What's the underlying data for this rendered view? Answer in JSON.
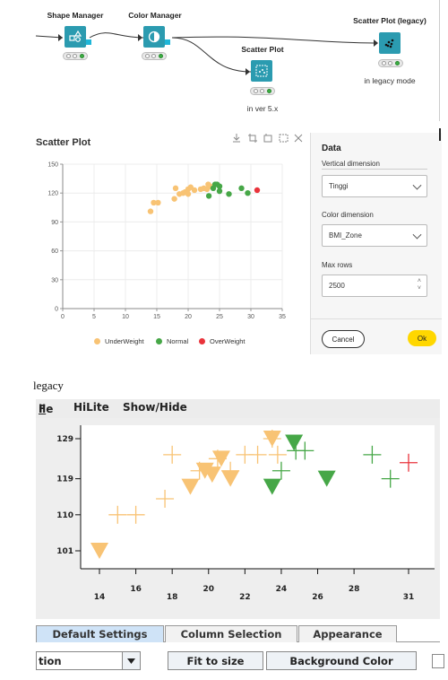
{
  "workflow": {
    "nodes": [
      {
        "label": "Shape Manager"
      },
      {
        "label": "Color Manager"
      },
      {
        "label": "Scatter Plot"
      },
      {
        "label": "Scatter Plot (legacy)"
      }
    ],
    "notes": {
      "new": "in ver 5.x",
      "legacy": "in legacy mode"
    }
  },
  "scatter_view": {
    "title": "Scatter Plot",
    "toolbar_icons": [
      "download-icon",
      "crop-icon",
      "select-icon",
      "zoom-icon",
      "expand-icon"
    ],
    "panel": {
      "title": "Data",
      "vertical_label": "Vertical dimension",
      "vertical_value": "Tinggi",
      "color_label": "Color dimension",
      "color_value": "BMI_Zone",
      "maxrows_label": "Max rows",
      "maxrows_value": "2500",
      "cancel": "Cancel",
      "ok": "Ok"
    },
    "legend": [
      {
        "name": "UnderWeight",
        "color": "#f8c374"
      },
      {
        "name": "Normal",
        "color": "#46a747"
      },
      {
        "name": "OverWeight",
        "color": "#e9333b"
      }
    ]
  },
  "chart_data": [
    {
      "type": "scatter",
      "xlim": [
        0,
        35
      ],
      "ylim": [
        0,
        150
      ],
      "x_ticks": [
        "0",
        "5",
        "10",
        "15",
        "20",
        "25",
        "30",
        "35"
      ],
      "y_ticks": [
        "0",
        "30",
        "60",
        "90",
        "120",
        "150"
      ],
      "grid": true,
      "legend_position": "bottom",
      "series": [
        {
          "name": "UnderWeight",
          "color": "#f8c374",
          "points": [
            [
              14,
              101
            ],
            [
              14.5,
              110
            ],
            [
              15.2,
              110
            ],
            [
              17.8,
              114
            ],
            [
              18,
              125
            ],
            [
              18.6,
              119
            ],
            [
              19.2,
              120
            ],
            [
              19.5,
              121
            ],
            [
              20,
              119
            ],
            [
              20,
              124
            ],
            [
              20.4,
              126
            ],
            [
              21,
              123
            ],
            [
              22,
              124
            ],
            [
              22.5,
              125
            ],
            [
              23,
              124
            ],
            [
              23.2,
              129
            ],
            [
              23.5,
              127
            ]
          ]
        },
        {
          "name": "Normal",
          "color": "#46a747",
          "points": [
            [
              23.3,
              117
            ],
            [
              24,
              125
            ],
            [
              24.3,
              129
            ],
            [
              24.6,
              129
            ],
            [
              25,
              122
            ],
            [
              25,
              127
            ],
            [
              26.5,
              119
            ],
            [
              28.5,
              125
            ],
            [
              29.5,
              120
            ]
          ]
        },
        {
          "name": "OverWeight",
          "color": "#e9333b",
          "points": [
            [
              31,
              123
            ]
          ]
        }
      ]
    },
    {
      "type": "scatter",
      "x_ticks": [
        "14",
        "16",
        "18",
        "20",
        "22",
        "24",
        "26",
        "28",
        "31"
      ],
      "y_ticks": [
        "129",
        "119",
        "110",
        "101"
      ],
      "series": [
        {
          "name": "UnderWeight",
          "color": "#f8c374",
          "marker": "plus",
          "points": [
            [
              18,
              125
            ],
            [
              17.6,
              114
            ],
            [
              15,
              110
            ],
            [
              16,
              110
            ],
            [
              19.5,
              121
            ],
            [
              20.5,
              124
            ],
            [
              21.2,
              121
            ],
            [
              22,
              125
            ],
            [
              22.7,
              125
            ],
            [
              23.5,
              129
            ],
            [
              23.8,
              125
            ]
          ]
        },
        {
          "name": "UnderWeight",
          "color": "#f8c374",
          "marker": "triangle",
          "points": [
            [
              14,
              101
            ],
            [
              19,
              117
            ],
            [
              19.8,
              121
            ],
            [
              20.2,
              120
            ],
            [
              20.7,
              124
            ],
            [
              21.2,
              119
            ],
            [
              23.5,
              129
            ]
          ]
        },
        {
          "name": "Normal",
          "color": "#46a747",
          "marker": "plus",
          "points": [
            [
              24,
              121
            ],
            [
              24.8,
              126
            ],
            [
              25.3,
              126
            ],
            [
              29,
              125
            ],
            [
              30,
              119
            ]
          ]
        },
        {
          "name": "Normal",
          "color": "#46a747",
          "marker": "triangle",
          "points": [
            [
              23.5,
              117
            ],
            [
              24.7,
              128
            ],
            [
              26.5,
              119
            ]
          ]
        },
        {
          "name": "OverWeight",
          "color": "#e9333b",
          "marker": "plus",
          "points": [
            [
              31,
              123
            ]
          ]
        }
      ]
    }
  ],
  "legacy": {
    "caption": "legacy",
    "menu": [
      "File",
      "HiLite",
      "Show/Hide"
    ],
    "tabs": [
      "Default Settings",
      "Column Selection",
      "Appearance"
    ],
    "combo_value": "tion",
    "fit_button": "Fit to size",
    "bg_button": "Background Color"
  }
}
